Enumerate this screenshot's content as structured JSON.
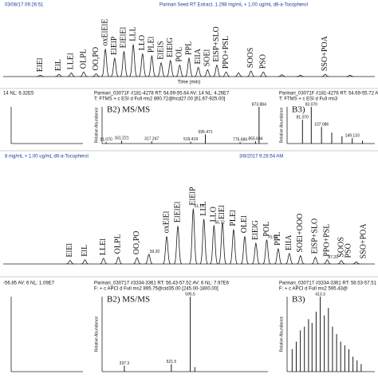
{
  "chart_data": [
    {
      "type": "chromatogram",
      "header": "03/08/17 09:26:51",
      "title": "Parinari Seed RT Extract, 1.298 mg/mL + 1.00 ug/mL d6-a-Tocopherol",
      "x_label": "Time (min)",
      "xlim": [
        0,
        60
      ],
      "ylim": [
        0,
        100
      ],
      "color": "#1a1a1a",
      "x": [
        6,
        9,
        11,
        13,
        15,
        16.5,
        18,
        19.5,
        21,
        22.5,
        24,
        25.5,
        27,
        28.5,
        30,
        31.5,
        33,
        34.5,
        36,
        38,
        40,
        42,
        45,
        48,
        52,
        56
      ],
      "values": [
        3,
        5,
        8,
        10,
        6,
        60,
        40,
        55,
        70,
        50,
        45,
        30,
        35,
        25,
        40,
        20,
        15,
        25,
        10,
        8,
        12,
        10,
        4,
        3,
        5,
        3
      ],
      "annotations": [
        {
          "text": "ElEl",
          "x": 6,
          "y": 3
        },
        {
          "text": "ElL",
          "x": 9,
          "y": 5
        },
        {
          "text": "LLEl",
          "x": 11,
          "y": 8
        },
        {
          "text": "OLPL",
          "x": 13,
          "y": 10
        },
        {
          "text": "OO,PO",
          "x": 15,
          "y": 6
        },
        {
          "text": "oxElElE",
          "x": 16.5,
          "y": 60
        },
        {
          "text": "ElElP",
          "x": 18,
          "y": 40
        },
        {
          "text": "ElElEl",
          "x": 19.5,
          "y": 55
        },
        {
          "text": "LLL",
          "x": 21,
          "y": 70
        },
        {
          "text": "LLO",
          "x": 22.5,
          "y": 50
        },
        {
          "text": "PLEl",
          "x": 24,
          "y": 45
        },
        {
          "text": "ElElS",
          "x": 25.5,
          "y": 30
        },
        {
          "text": "ElElG",
          "x": 27,
          "y": 35
        },
        {
          "text": "POL",
          "x": 28.5,
          "y": 25
        },
        {
          "text": "PPL",
          "x": 30,
          "y": 40
        },
        {
          "text": "ElIA",
          "x": 31.5,
          "y": 20
        },
        {
          "text": "SOEl",
          "x": 33,
          "y": 15
        },
        {
          "text": "ElSP+SLO",
          "x": 34.5,
          "y": 25
        },
        {
          "text": "PPO+PSL",
          "x": 36,
          "y": 10
        },
        {
          "text": "SOOS",
          "x": 40,
          "y": 12
        },
        {
          "text": "PSO",
          "x": 42,
          "y": 10
        },
        {
          "text": "SSO+POA",
          "x": 52,
          "y": 5
        }
      ]
    },
    {
      "type": "spectrum",
      "header": "14 NL: 6.32E5"
    },
    {
      "type": "spectrum",
      "header": "Parinari_03071F #181-4278 RT: 54.69-55.64 AV: 14 NL: 4.26E7",
      "subheader": "T: FTMS + c ESI d Full ms2 890.72@hcd27.00 [61.67-925.00]",
      "title": "B2) MS/MS",
      "y_label": "Relative Abundance",
      "xlim": [
        60,
        920
      ],
      "ylim": [
        0,
        100
      ],
      "color": "#1a1a1a",
      "x": [
        81.07,
        161.221,
        317.247,
        519.419,
        595.471,
        775.686,
        855.684,
        873.884
      ],
      "values": [
        4,
        8,
        6,
        5,
        25,
        4,
        6,
        100
      ],
      "peak_labels": [
        "81.070",
        "161.221",
        "317.247",
        "519.419",
        "595.471",
        "775.686",
        "855.684",
        "873.884"
      ]
    },
    {
      "type": "spectrum",
      "header": "Parinari_03071F #181-4276 RT: 54.69-55.72 AV: 14",
      "subheader": "T: FTMS + c ESI d Full ms3",
      "title": "B3)",
      "y_label": "Relative Abundance",
      "xlim": [
        60,
        180
      ],
      "ylim": [
        0,
        100
      ],
      "color": "#1a1a1a",
      "x": [
        81.07,
        93.07,
        107.086,
        121.1,
        135.12,
        149.133,
        163.15
      ],
      "values": [
        65,
        100,
        45,
        30,
        20,
        15,
        8
      ],
      "peak_labels": [
        "81.070",
        "93.070",
        "107.086",
        "",
        "",
        "149.133",
        ""
      ]
    },
    {
      "type": "chromatogram",
      "header": "8 mg/mL + 1.00 ug/mL d6-a-Tocopherol",
      "header_right": "3/8/2017 9:26:54 AM",
      "xlim": [
        0,
        100
      ],
      "ylim": [
        0,
        100
      ],
      "color": "#1a1a1a",
      "x": [
        18,
        22,
        27,
        31,
        36,
        39.2,
        44,
        47,
        51.15,
        54,
        56.72,
        59,
        62,
        65,
        68,
        70.92,
        74,
        77,
        80,
        84,
        87.2,
        91,
        95
      ],
      "values": [
        5,
        6,
        8,
        10,
        9,
        14,
        40,
        55,
        80,
        65,
        56,
        60,
        50,
        40,
        30,
        35,
        22,
        15,
        12,
        10,
        6,
        5,
        3
      ],
      "peak_labels": [
        "",
        "",
        "",
        "",
        "",
        "39.20",
        "",
        "",
        "51.15",
        "",
        "56.72",
        "",
        "",
        "",
        "",
        "70.92",
        "",
        "",
        "",
        "",
        "87.20",
        "",
        ""
      ],
      "annotations": [
        {
          "text": "ElEl",
          "x": 18,
          "y": 5
        },
        {
          "text": "ElL",
          "x": 22,
          "y": 6
        },
        {
          "text": "LLEl",
          "x": 27,
          "y": 8
        },
        {
          "text": "OLPL",
          "x": 31,
          "y": 10
        },
        {
          "text": "OO,PO",
          "x": 36,
          "y": 9
        },
        {
          "text": "oxElEl",
          "x": 44,
          "y": 40
        },
        {
          "text": "ElElEl",
          "x": 47,
          "y": 55
        },
        {
          "text": "ElElP",
          "x": 51.15,
          "y": 80
        },
        {
          "text": "LLL",
          "x": 54,
          "y": 65
        },
        {
          "text": "LLO",
          "x": 56.72,
          "y": 56
        },
        {
          "text": "ElEl",
          "x": 59,
          "y": 60
        },
        {
          "text": "PLEl",
          "x": 62,
          "y": 50
        },
        {
          "text": "OLEl",
          "x": 65,
          "y": 40
        },
        {
          "text": "ElElG",
          "x": 68,
          "y": 30
        },
        {
          "text": "POL",
          "x": 70.92,
          "y": 35
        },
        {
          "text": "PPL",
          "x": 74,
          "y": 22
        },
        {
          "text": "ElIA",
          "x": 77,
          "y": 15
        },
        {
          "text": "SOEl+OOO",
          "x": 80,
          "y": 12
        },
        {
          "text": "ElSP+SLO",
          "x": 84,
          "y": 10
        },
        {
          "text": "PPO+PSL",
          "x": 87.2,
          "y": 6
        },
        {
          "text": "SOOS",
          "x": 91,
          "y": 5
        },
        {
          "text": "PSO",
          "x": 93,
          "y": 4
        },
        {
          "text": "SSO+POA",
          "x": 97,
          "y": 3
        }
      ]
    },
    {
      "type": "spectrum",
      "header": "-56.85 AV: 6 NL: 1.09E7"
    },
    {
      "type": "spectrum",
      "header": "Parinari_030717 #3334-3361 RT: 56.43-57.52 AV: 6 NL: 7.97E6",
      "subheader": "F: + c APCI d Full ms2 895.75@cid35.00 [245.00-1800.00]",
      "title": "B2) MS/MS",
      "y_label": "Relative Abundance",
      "xlim": [
        250,
        900
      ],
      "ylim": [
        0,
        100
      ],
      "color": "#1a1a1a",
      "x": [
        337.3,
        521.5,
        595.5,
        613.5
      ],
      "values": [
        8,
        10,
        100,
        6
      ],
      "peak_labels": [
        "337.3",
        "521.5",
        "595.5",
        ""
      ]
    },
    {
      "type": "spectrum",
      "header": "Parinari_030717 #3334-3361 RT: 56.53-57.51",
      "subheader": "F: + c APCI d Full ms2 595.43@",
      "title": "B3)",
      "y_label": "Relative Abundance",
      "xlim": [
        300,
        600
      ],
      "ylim": [
        0,
        100
      ],
      "color": "#1a1a1a",
      "x": [
        317.3,
        331.3,
        345.3,
        359.3,
        373.3,
        385.3,
        399.3,
        413.3,
        427.3,
        441.3,
        455.3,
        469.3,
        483.3,
        497.3,
        511.3,
        525.3,
        539.3,
        553.3
      ],
      "values": [
        30,
        40,
        55,
        60,
        70,
        65,
        80,
        100,
        75,
        85,
        60,
        50,
        40,
        35,
        30,
        20,
        15,
        10
      ],
      "peak_labels": [
        "",
        "",
        "",
        "",
        "",
        "",
        "",
        "413.3",
        "",
        "",
        "",
        "",
        "",
        "",
        "",
        "",
        "",
        ""
      ]
    }
  ]
}
